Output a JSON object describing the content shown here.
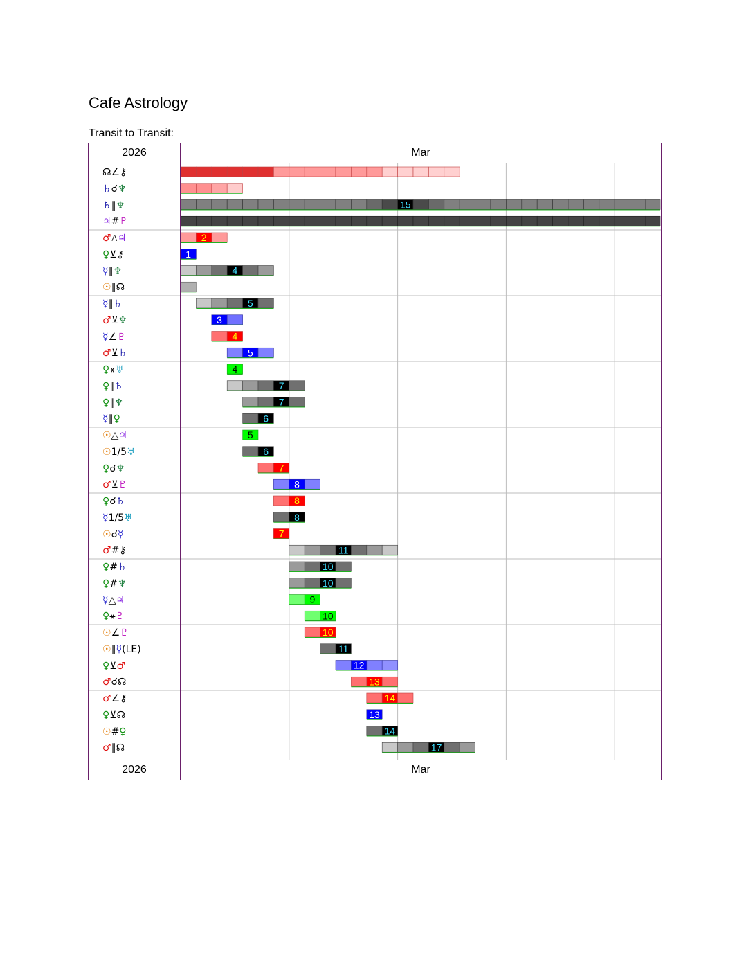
{
  "site_title": "Cafe Astrology",
  "subtitle": "Transit to Transit:",
  "header": {
    "year": "2026",
    "month": "Mar"
  },
  "footer": {
    "year": "2026",
    "month": "Mar"
  },
  "glyph_colors": {
    "☉": "#e07800",
    "☿": "#3030d0",
    "♀": "#109010",
    "♂": "#e01010",
    "♃": "#8a2be2",
    "♄": "#2a2ab0",
    "♅": "#20a0c0",
    "♆": "#208040",
    "♇": "#c020c0",
    "☊": "#000000",
    "⚷": "#000000"
  },
  "chart_data": {
    "type": "timeline",
    "rows": [
      {
        "label": [
          "☊",
          "∠",
          "⚷"
        ],
        "start": 0,
        "end": 18,
        "style": "red",
        "peak": null
      },
      {
        "label": [
          "♄",
          "☌",
          "♆"
        ],
        "start": 0,
        "end": 4,
        "style": "red-light",
        "peak": null
      },
      {
        "label": [
          "♄",
          "∥",
          "♆"
        ],
        "start": 0,
        "end": 31,
        "style": "gray-dark",
        "peak": 15
      },
      {
        "label": [
          "♃",
          "#",
          "♇"
        ],
        "start": 0,
        "end": 31,
        "style": "gray-darker",
        "peak": null
      },
      {
        "label": [
          "♂",
          "⚻",
          "♃"
        ],
        "start": 0,
        "end": 3,
        "style": "red-light",
        "peak": 2
      },
      {
        "label": [
          "♀",
          "⊻",
          "⚷"
        ],
        "start": 0,
        "end": 1,
        "style": "blue",
        "peak": 1
      },
      {
        "label": [
          "☿",
          "∥",
          "♆"
        ],
        "start": 0,
        "end": 6,
        "style": "gray",
        "peak": 4
      },
      {
        "label": [
          "☉",
          "∥",
          "☊"
        ],
        "start": 0,
        "end": 1,
        "style": "gray-light",
        "peak": null
      },
      {
        "label": [
          "☿",
          "∥",
          "♄"
        ],
        "start": 1,
        "end": 6,
        "style": "gray",
        "peak": 5
      },
      {
        "label": [
          "♂",
          "⊻",
          "♆"
        ],
        "start": 2,
        "end": 4,
        "style": "blue",
        "peak": 3
      },
      {
        "label": [
          "☿",
          "∠",
          "♇"
        ],
        "start": 2,
        "end": 4,
        "style": "red",
        "peak": 4
      },
      {
        "label": [
          "♂",
          "⊻",
          "♄"
        ],
        "start": 3,
        "end": 6,
        "style": "blue-light",
        "peak": 5
      },
      {
        "label": [
          "♀",
          "⚹",
          "♅"
        ],
        "start": 3,
        "end": 4,
        "style": "green",
        "peak": 4
      },
      {
        "label": [
          "♀",
          "∥",
          "♄"
        ],
        "start": 3,
        "end": 8,
        "style": "gray",
        "peak": 7
      },
      {
        "label": [
          "♀",
          "∥",
          "♆"
        ],
        "start": 4,
        "end": 8,
        "style": "gray",
        "peak": 7
      },
      {
        "label": [
          "☿",
          "∥",
          "♀"
        ],
        "start": 4,
        "end": 6,
        "style": "gray",
        "peak": 6
      },
      {
        "label": [
          "☉",
          "△",
          "♃"
        ],
        "start": 4,
        "end": 5,
        "style": "green",
        "peak": 5
      },
      {
        "label": [
          "☉",
          "1/5",
          "♅"
        ],
        "start": 4,
        "end": 6,
        "style": "gray",
        "peak": 6
      },
      {
        "label": [
          "♀",
          "☌",
          "♆"
        ],
        "start": 5,
        "end": 7,
        "style": "red",
        "peak": 7
      },
      {
        "label": [
          "♂",
          "⊻",
          "♇"
        ],
        "start": 6,
        "end": 9,
        "style": "blue-light",
        "peak": 8
      },
      {
        "label": [
          "♀",
          "☌",
          "♄"
        ],
        "start": 6,
        "end": 8,
        "style": "red",
        "peak": 8
      },
      {
        "label": [
          "☿",
          "1/5",
          "♅"
        ],
        "start": 6,
        "end": 8,
        "style": "gray",
        "peak": 8
      },
      {
        "label": [
          "☉",
          "☌",
          "☿"
        ],
        "start": 6,
        "end": 7,
        "style": "red",
        "peak": 7
      },
      {
        "label": [
          "♂",
          "#",
          "⚷"
        ],
        "start": 7,
        "end": 14,
        "style": "gray",
        "peak": 11
      },
      {
        "label": [
          "♀",
          "#",
          "♄"
        ],
        "start": 7,
        "end": 11,
        "style": "gray",
        "peak": 10
      },
      {
        "label": [
          "♀",
          "#",
          "♆"
        ],
        "start": 7,
        "end": 11,
        "style": "gray",
        "peak": 10
      },
      {
        "label": [
          "☿",
          "△",
          "♃"
        ],
        "start": 7,
        "end": 9,
        "style": "green",
        "peak": 9
      },
      {
        "label": [
          "♀",
          "⚹",
          "♇"
        ],
        "start": 8,
        "end": 10,
        "style": "green",
        "peak": 10
      },
      {
        "label": [
          "☉",
          "∠",
          "♇"
        ],
        "start": 8,
        "end": 10,
        "style": "red",
        "peak": 10
      },
      {
        "label": [
          "☉",
          "∥",
          "☿",
          "(LE)"
        ],
        "start": 9,
        "end": 11,
        "style": "gray",
        "peak": 11
      },
      {
        "label": [
          "♀",
          "⊻",
          "♂"
        ],
        "start": 10,
        "end": 14,
        "style": "blue-light",
        "peak": 12
      },
      {
        "label": [
          "♂",
          "☌",
          "☊"
        ],
        "start": 11,
        "end": 14,
        "style": "red",
        "peak": 13
      },
      {
        "label": [
          "♂",
          "∠",
          "⚷"
        ],
        "start": 12,
        "end": 15,
        "style": "red",
        "peak": 14
      },
      {
        "label": [
          "♀",
          "⊻",
          "☊"
        ],
        "start": 12,
        "end": 13,
        "style": "blue",
        "peak": 13
      },
      {
        "label": [
          "☉",
          "#",
          "♀"
        ],
        "start": 12,
        "end": 14,
        "style": "gray",
        "peak": 14
      },
      {
        "label": [
          "♂",
          "∥",
          "☊"
        ],
        "start": 13,
        "end": 19,
        "style": "gray",
        "peak": 17
      }
    ]
  }
}
